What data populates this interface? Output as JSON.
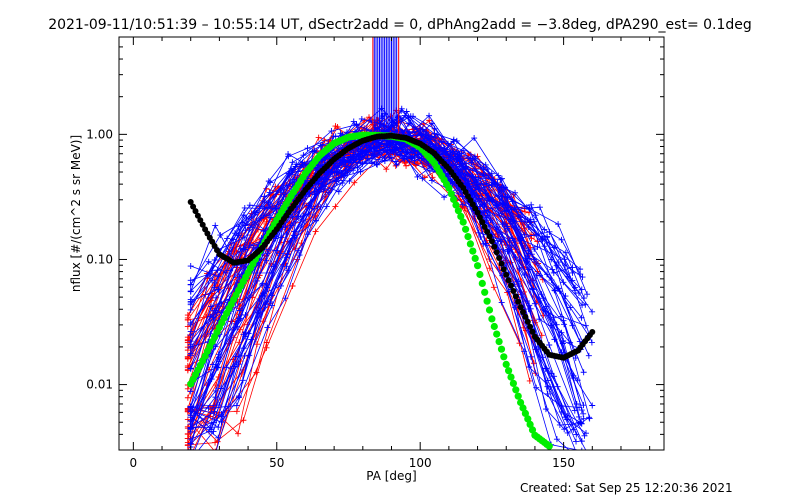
{
  "title": "2021-09-11/10:51:39 – 10:55:14 UT, dSectr2add = 0, dPhAng2add = −3.8deg, dPA290_est=  0.1deg",
  "footer": "Created: Sat Sep 25 12:20:36 2021",
  "colors": {
    "red_traces": "#ff0000",
    "blue_traces": "#0000ff",
    "green_fit": "#00ee00",
    "black_fit": "#000000"
  },
  "chart_data": {
    "type": "line",
    "xlabel": "PA [deg]",
    "ylabel": "nflux [#/(cm^2 s sr MeV)]",
    "xlim": [
      -5,
      185
    ],
    "ylim": [
      0.003,
      6
    ],
    "yscale": "log",
    "grid": false,
    "xticks": [
      0,
      50,
      100,
      150
    ],
    "xtick_labels": [
      "0",
      "50",
      "100",
      "150"
    ],
    "yticks": [
      1.0,
      0.1,
      0.01
    ],
    "ytick_labels": [
      "1.00",
      "0.10",
      "0.01"
    ],
    "series": [
      {
        "color": "green",
        "style": "thick-dots",
        "x": [
          20,
          25,
          30,
          35,
          40,
          45,
          50,
          55,
          60,
          65,
          70,
          75,
          80,
          85,
          90,
          95,
          100,
          105,
          110,
          115,
          120,
          125,
          130,
          135,
          140,
          145
        ],
        "y": [
          0.0101,
          0.0169,
          0.0287,
          0.0479,
          0.0786,
          0.127,
          0.207,
          0.321,
          0.488,
          0.677,
          0.848,
          0.949,
          0.987,
          0.98,
          0.967,
          0.918,
          0.788,
          0.587,
          0.372,
          0.199,
          0.0892,
          0.0335,
          0.0145,
          0.00719,
          0.00393,
          0.00322
        ]
      },
      {
        "color": "black",
        "style": "dots",
        "x": [
          20,
          25,
          30,
          35,
          40,
          45,
          50,
          55,
          60,
          65,
          70,
          75,
          80,
          85,
          90,
          95,
          100,
          105,
          110,
          115,
          120,
          125,
          130,
          135,
          140,
          145,
          150,
          155,
          160
        ],
        "y": [
          0.288,
          0.174,
          0.11,
          0.0941,
          0.0985,
          0.124,
          0.175,
          0.254,
          0.36,
          0.491,
          0.634,
          0.775,
          0.89,
          0.96,
          0.975,
          0.937,
          0.844,
          0.703,
          0.53,
          0.373,
          0.237,
          0.14,
          0.0754,
          0.0416,
          0.0242,
          0.0173,
          0.0164,
          0.0187,
          0.0263
        ]
      }
    ],
    "scatter_traces": [
      {
        "color": "red",
        "marker": "+",
        "x_range": [
          19,
          143
        ],
        "peak_pa": 90,
        "peak_value": 0.96,
        "min_value": 0.003
      },
      {
        "color": "blue",
        "marker": "+",
        "x_range": [
          20,
          160
        ],
        "peak_pa": 90,
        "peak_value": 1.0,
        "min_value": 0.003
      }
    ]
  }
}
